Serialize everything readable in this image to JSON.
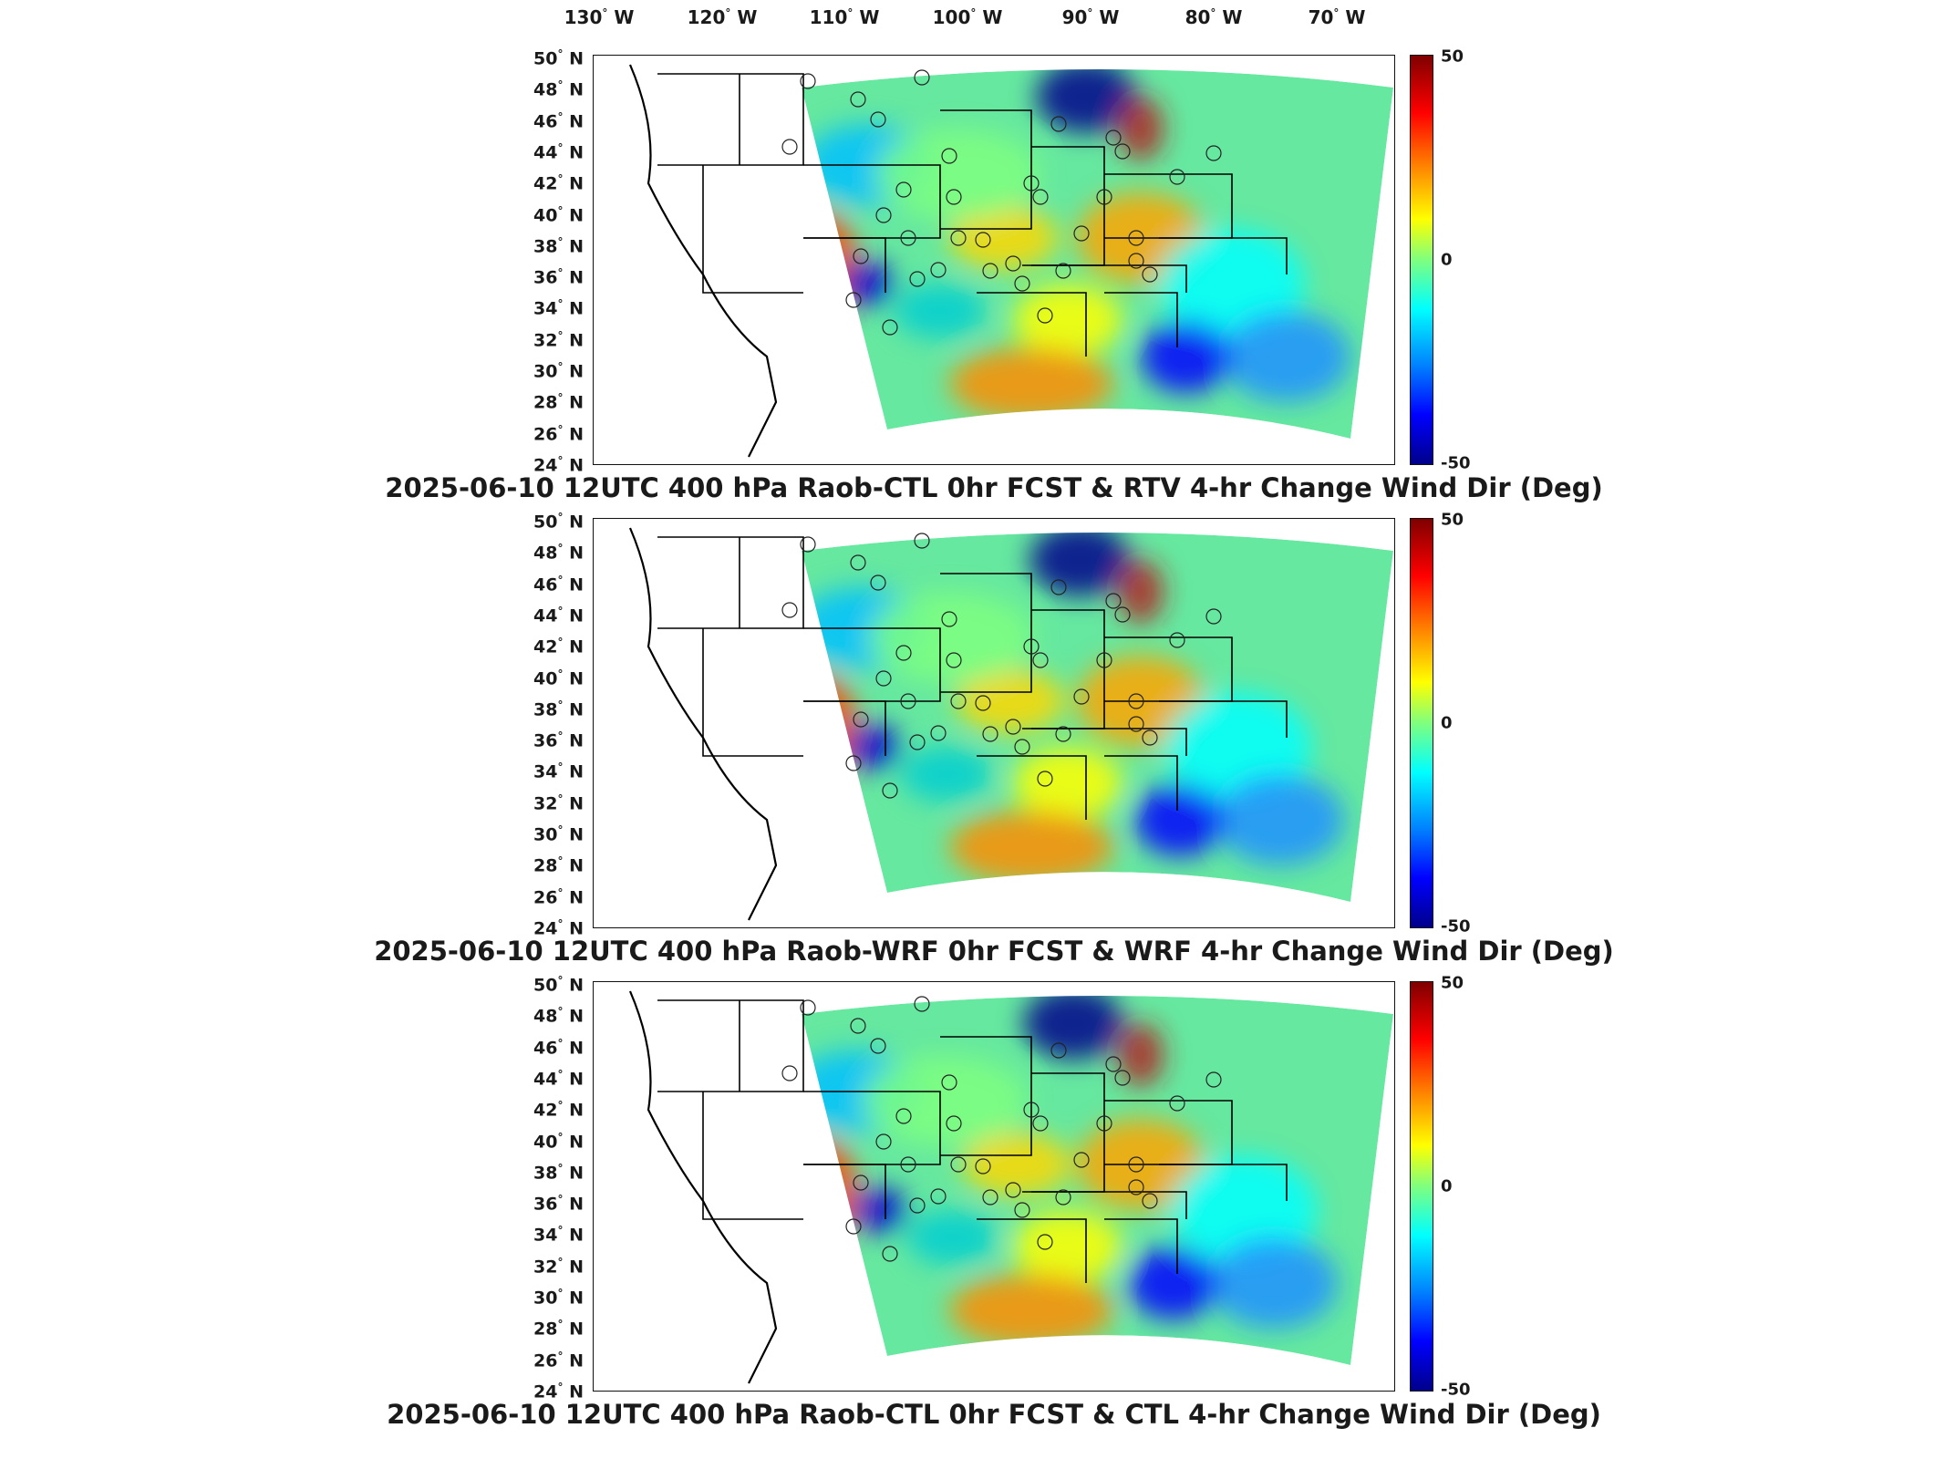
{
  "top_axis": {
    "lon_labels": [
      {
        "deg": "130",
        "hemi": "W"
      },
      {
        "deg": "120",
        "hemi": "W"
      },
      {
        "deg": "110",
        "hemi": "W"
      },
      {
        "deg": "100",
        "hemi": "W"
      },
      {
        "deg": "90",
        "hemi": "W"
      },
      {
        "deg": "80",
        "hemi": "W"
      },
      {
        "deg": "70",
        "hemi": "W"
      }
    ]
  },
  "lat_labels": [
    "50",
    "48",
    "46",
    "44",
    "42",
    "40",
    "38",
    "36",
    "34",
    "32",
    "30",
    "28",
    "26",
    "24"
  ],
  "lat_hemi": "N",
  "colorbar": {
    "max_label": "50",
    "mid_label": "0",
    "min_label": "-50",
    "colormap": "jet",
    "colors": [
      "#800000",
      "#ff0000",
      "#ff8c00",
      "#ffff00",
      "#7fff7f",
      "#00ffff",
      "#0080ff",
      "#0000ff",
      "#00008b"
    ]
  },
  "panels": [
    {
      "title": "2025-06-10 12UTC 400 hPa Raob-CTL 0hr FCST & RTV 4-hr Change Wind Dir (Deg)"
    },
    {
      "title": "2025-06-10 12UTC 400 hPa Raob-WRF 0hr FCST & WRF 4-hr Change Wind Dir (Deg)"
    },
    {
      "title": "2025-06-10 12UTC 400 hPa Raob-CTL 0hr FCST & CTL 4-hr Change Wind Dir (Deg)"
    }
  ]
}
